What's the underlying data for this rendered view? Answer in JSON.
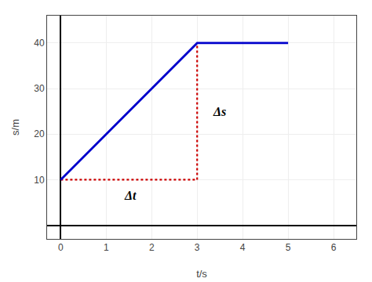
{
  "chart_data": {
    "type": "line",
    "xlabel": "t/s",
    "ylabel": "s/m",
    "series": [
      {
        "color": "#0000cc",
        "line_style": "solid",
        "x": [
          0,
          3,
          5
        ],
        "values": [
          10,
          40,
          40
        ]
      },
      {
        "color": "#cc0000",
        "line_style": "dotted",
        "x": [
          0,
          3
        ],
        "values": [
          10,
          10
        ]
      },
      {
        "color": "#cc0000",
        "line_style": "dotted",
        "x": [
          3,
          3
        ],
        "values": [
          10,
          40
        ]
      }
    ],
    "xlim": [
      -0.3,
      6.5
    ],
    "ylim": [
      -3,
      46
    ],
    "xticks": [
      0,
      1,
      2,
      3,
      4,
      5,
      6
    ],
    "yticks": [
      10,
      20,
      30,
      40
    ],
    "grid": true,
    "annotations": [
      {
        "text": "Δs",
        "x": 3.3,
        "y": 25
      },
      {
        "text": "Δt",
        "x": 1.35,
        "y": 6.5
      }
    ]
  }
}
